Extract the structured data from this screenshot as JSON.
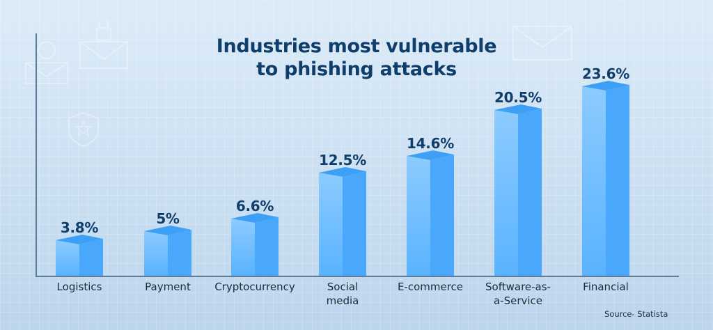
{
  "title_line1": "Industries most vulnerable",
  "title_line2": "to phishing attacks",
  "source": "Source- Statista",
  "colors": {
    "title": "#0f3e6b",
    "bar_front_light": "#8ccbff",
    "bar_front": "#64b6ff",
    "bar_side": "#49a8fb",
    "bar_top": "#3d9ff5",
    "background": "#d3e5f5",
    "axis": "#5c7b99"
  },
  "bars": [
    {
      "label": "Logistics",
      "label_line2": "",
      "value_label": "3.8%"
    },
    {
      "label": "Payment",
      "label_line2": "",
      "value_label": "5%"
    },
    {
      "label": "Cryptocurrency",
      "label_line2": "",
      "value_label": "6.6%"
    },
    {
      "label": "Social",
      "label_line2": "media",
      "value_label": "12.5%"
    },
    {
      "label": "E-commerce",
      "label_line2": "",
      "value_label": "14.6%"
    },
    {
      "label": "Software-as-",
      "label_line2": "a-Service",
      "value_label": "20.5%"
    },
    {
      "label": "Financial",
      "label_line2": "",
      "value_label": "23.6%"
    }
  ],
  "chart_data": {
    "type": "bar",
    "title": "Industries most vulnerable to phishing attacks",
    "categories": [
      "Logistics",
      "Payment",
      "Cryptocurrency",
      "Social media",
      "E-commerce",
      "Software-as-a-Service",
      "Financial"
    ],
    "values": [
      3.8,
      5,
      6.6,
      12.5,
      14.6,
      20.5,
      23.6
    ],
    "unit": "%",
    "xlabel": "",
    "ylabel": "",
    "ylim": [
      0,
      27
    ],
    "grid": false,
    "legend": null,
    "data_labels": true,
    "style": "3d-bars",
    "annotations": [
      "Source- Statista"
    ]
  }
}
